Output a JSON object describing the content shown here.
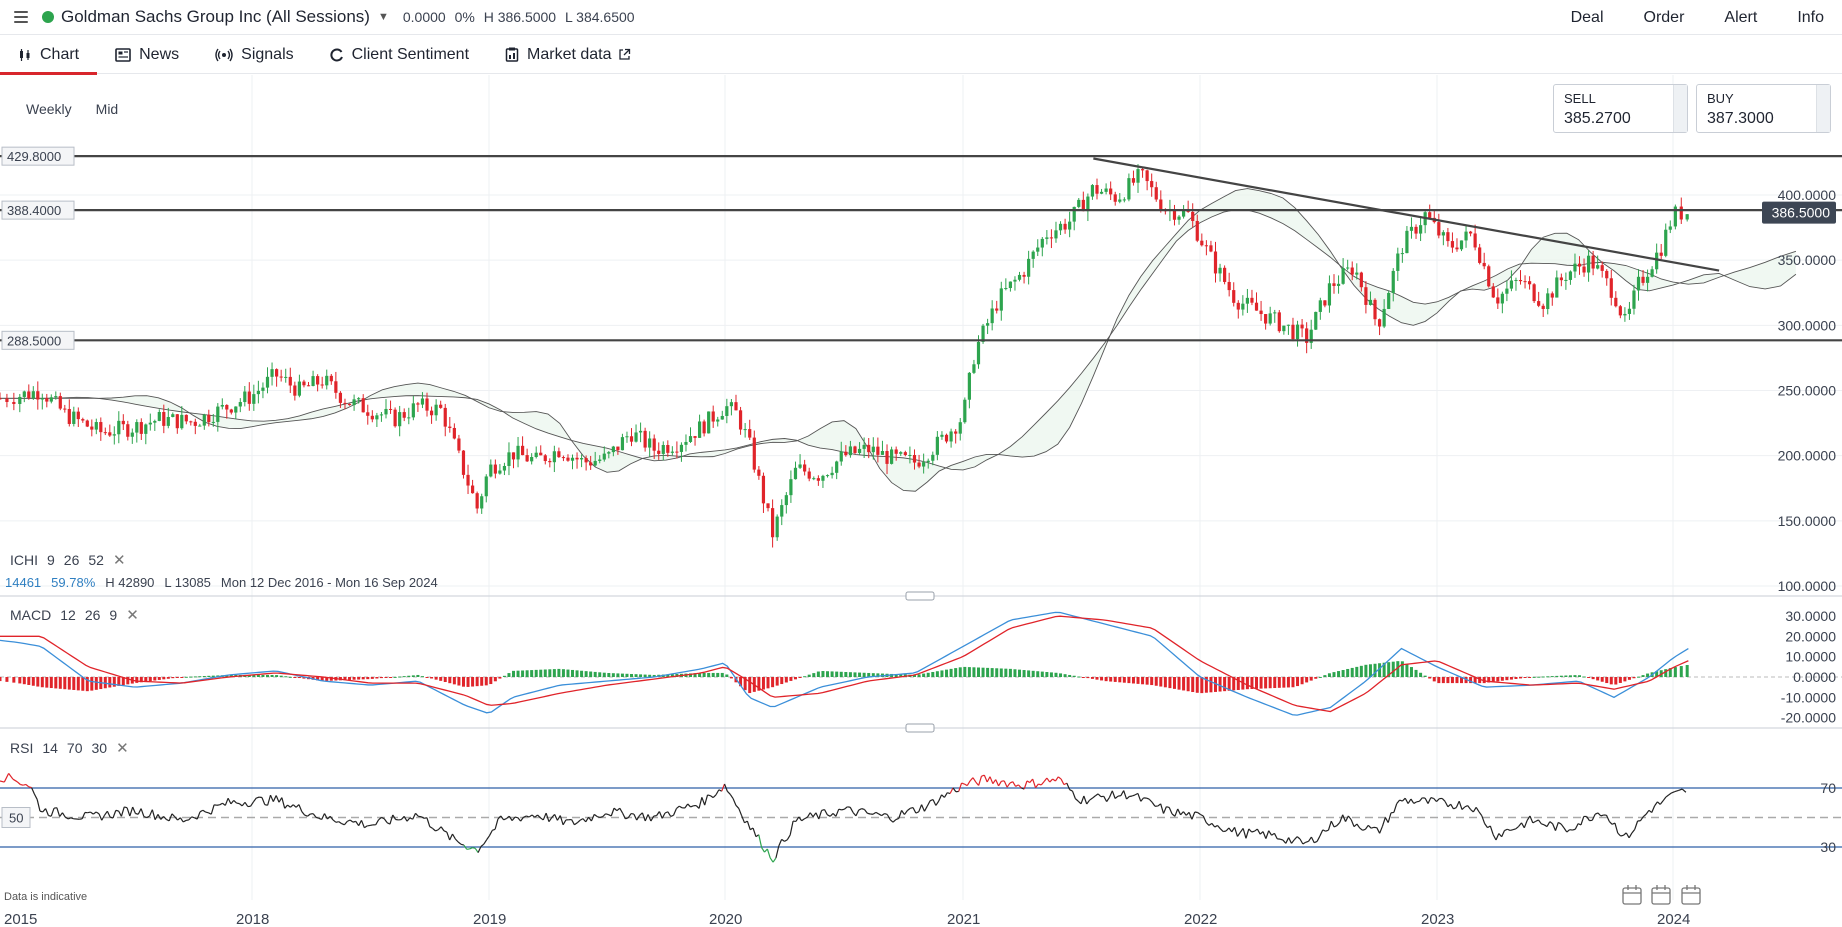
{
  "header": {
    "instrument": "Goldman Sachs Group Inc (All Sessions)",
    "change": "0.0000",
    "change_pct": "0%",
    "high": "H 386.5000",
    "low": "L 384.6500",
    "actions": [
      "Deal",
      "Order",
      "Alert",
      "Info"
    ]
  },
  "tabs": [
    {
      "label": "Chart",
      "icon": "candlestick-icon"
    },
    {
      "label": "News",
      "icon": "newspaper-icon"
    },
    {
      "label": "Signals",
      "icon": "signal-icon"
    },
    {
      "label": "Client Sentiment",
      "icon": "sentiment-icon"
    },
    {
      "label": "Market data",
      "icon": "market-data-icon"
    }
  ],
  "controls": {
    "interval": "Weekly",
    "price_type": "Mid"
  },
  "prices": {
    "sell_label": "SELL",
    "sell": "385.2700",
    "buy_label": "BUY",
    "buy": "387.3000",
    "current": "386.5000"
  },
  "colors": {
    "up": "#2da44e",
    "down": "#e0242a",
    "accent": "#d8262c",
    "current_tag": "#3d4654"
  },
  "chart_data": [
    {
      "type": "candlestick",
      "title": "",
      "y_ticks": [
        "400.0000",
        "350.0000",
        "300.0000",
        "250.0000",
        "200.0000",
        "150.0000",
        "100.0000"
      ],
      "x_ticks": [
        "2015",
        "2018",
        "2019",
        "2020",
        "2021",
        "2022",
        "2023",
        "2024"
      ],
      "ylim": [
        100,
        450
      ],
      "horizontal_levels": [
        "429.8000",
        "388.4000",
        "288.5000"
      ],
      "level_values": [
        429.8,
        388.4,
        288.5
      ],
      "trendline": [
        {
          "x": 2021.55,
          "y": 428
        },
        {
          "x": 2024.15,
          "y": 342
        }
      ],
      "close_path": [
        [
          2016.95,
          244
        ],
        [
          2017.1,
          250
        ],
        [
          2017.2,
          232
        ],
        [
          2017.35,
          218
        ],
        [
          2017.5,
          222
        ],
        [
          2017.6,
          228
        ],
        [
          2017.75,
          226
        ],
        [
          2017.9,
          238
        ],
        [
          2018.0,
          246
        ],
        [
          2018.1,
          262
        ],
        [
          2018.2,
          250
        ],
        [
          2018.3,
          258
        ],
        [
          2018.4,
          242
        ],
        [
          2018.5,
          235
        ],
        [
          2018.6,
          228
        ],
        [
          2018.7,
          238
        ],
        [
          2018.8,
          235
        ],
        [
          2018.85,
          210
        ],
        [
          2018.95,
          160
        ],
        [
          2019.0,
          190
        ],
        [
          2019.1,
          202
        ],
        [
          2019.2,
          196
        ],
        [
          2019.3,
          205
        ],
        [
          2019.4,
          195
        ],
        [
          2019.5,
          198
        ],
        [
          2019.6,
          218
        ],
        [
          2019.7,
          205
        ],
        [
          2019.8,
          210
        ],
        [
          2019.9,
          222
        ],
        [
          2020.0,
          238
        ],
        [
          2020.05,
          232
        ],
        [
          2020.1,
          210
        ],
        [
          2020.2,
          140
        ],
        [
          2020.3,
          190
        ],
        [
          2020.4,
          185
        ],
        [
          2020.5,
          200
        ],
        [
          2020.6,
          205
        ],
        [
          2020.7,
          198
        ],
        [
          2020.8,
          195
        ],
        [
          2020.9,
          210
        ],
        [
          2021.0,
          230
        ],
        [
          2021.05,
          280
        ],
        [
          2021.15,
          320
        ],
        [
          2021.25,
          340
        ],
        [
          2021.35,
          370
        ],
        [
          2021.45,
          380
        ],
        [
          2021.55,
          405
        ],
        [
          2021.65,
          398
        ],
        [
          2021.75,
          415
        ],
        [
          2021.85,
          390
        ],
        [
          2021.95,
          385
        ],
        [
          2022.05,
          350
        ],
        [
          2022.15,
          320
        ],
        [
          2022.3,
          305
        ],
        [
          2022.45,
          290
        ],
        [
          2022.55,
          330
        ],
        [
          2022.65,
          345
        ],
        [
          2022.75,
          300
        ],
        [
          2022.85,
          360
        ],
        [
          2022.95,
          385
        ],
        [
          2023.05,
          360
        ],
        [
          2023.15,
          370
        ],
        [
          2023.25,
          320
        ],
        [
          2023.35,
          335
        ],
        [
          2023.45,
          318
        ],
        [
          2023.55,
          340
        ],
        [
          2023.65,
          350
        ],
        [
          2023.75,
          325
        ],
        [
          2023.8,
          300
        ],
        [
          2023.85,
          330
        ],
        [
          2023.95,
          360
        ],
        [
          2024.0,
          385
        ],
        [
          2024.05,
          387
        ]
      ]
    },
    {
      "type": "line",
      "title": "",
      "y_ticks": [
        "30.0000",
        "20.0000",
        "10.0000",
        "0.0000",
        "-10.0000",
        "-20.0000"
      ],
      "ylim": [
        -25,
        35
      ],
      "macd": [
        [
          2016.95,
          18
        ],
        [
          2017.1,
          15
        ],
        [
          2017.3,
          -2
        ],
        [
          2017.5,
          -5
        ],
        [
          2017.7,
          -3
        ],
        [
          2017.9,
          1
        ],
        [
          2018.1,
          3
        ],
        [
          2018.3,
          -2
        ],
        [
          2018.5,
          -4
        ],
        [
          2018.7,
          -2
        ],
        [
          2018.9,
          -14
        ],
        [
          2019.0,
          -18
        ],
        [
          2019.1,
          -10
        ],
        [
          2019.3,
          -4
        ],
        [
          2019.5,
          -2
        ],
        [
          2019.7,
          0
        ],
        [
          2019.9,
          4
        ],
        [
          2020.0,
          7
        ],
        [
          2020.1,
          -10
        ],
        [
          2020.2,
          -15
        ],
        [
          2020.4,
          -5
        ],
        [
          2020.6,
          0
        ],
        [
          2020.8,
          2
        ],
        [
          2021.0,
          15
        ],
        [
          2021.2,
          28
        ],
        [
          2021.4,
          32
        ],
        [
          2021.6,
          26
        ],
        [
          2021.8,
          20
        ],
        [
          2022.0,
          0
        ],
        [
          2022.2,
          -10
        ],
        [
          2022.4,
          -19
        ],
        [
          2022.55,
          -15
        ],
        [
          2022.7,
          -2
        ],
        [
          2022.85,
          14
        ],
        [
          2023.0,
          5
        ],
        [
          2023.2,
          -5
        ],
        [
          2023.4,
          -4
        ],
        [
          2023.6,
          -2
        ],
        [
          2023.75,
          -10
        ],
        [
          2023.9,
          0
        ],
        [
          2024.05,
          14
        ]
      ],
      "signal": [
        [
          2016.95,
          20
        ],
        [
          2017.1,
          20
        ],
        [
          2017.3,
          5
        ],
        [
          2017.5,
          -2
        ],
        [
          2017.7,
          -3
        ],
        [
          2017.9,
          0
        ],
        [
          2018.1,
          2
        ],
        [
          2018.3,
          0
        ],
        [
          2018.5,
          -3
        ],
        [
          2018.7,
          -3
        ],
        [
          2018.9,
          -9
        ],
        [
          2019.0,
          -14
        ],
        [
          2019.1,
          -13
        ],
        [
          2019.3,
          -8
        ],
        [
          2019.5,
          -4
        ],
        [
          2019.7,
          -1
        ],
        [
          2019.9,
          2
        ],
        [
          2020.0,
          5
        ],
        [
          2020.1,
          -2
        ],
        [
          2020.2,
          -10
        ],
        [
          2020.4,
          -8
        ],
        [
          2020.6,
          -2
        ],
        [
          2020.8,
          1
        ],
        [
          2021.0,
          10
        ],
        [
          2021.2,
          24
        ],
        [
          2021.4,
          30
        ],
        [
          2021.6,
          28
        ],
        [
          2021.8,
          24
        ],
        [
          2022.0,
          8
        ],
        [
          2022.2,
          -4
        ],
        [
          2022.4,
          -14
        ],
        [
          2022.55,
          -17
        ],
        [
          2022.7,
          -8
        ],
        [
          2022.85,
          6
        ],
        [
          2023.0,
          8
        ],
        [
          2023.2,
          -2
        ],
        [
          2023.4,
          -4
        ],
        [
          2023.6,
          -3
        ],
        [
          2023.75,
          -6
        ],
        [
          2023.9,
          -2
        ],
        [
          2024.05,
          8
        ]
      ]
    },
    {
      "type": "line",
      "title": "",
      "y_ticks": [
        "70",
        "30"
      ],
      "ylim": [
        10,
        90
      ],
      "rsi": [
        [
          2016.95,
          78
        ],
        [
          2017.05,
          72
        ],
        [
          2017.1,
          55
        ],
        [
          2017.3,
          50
        ],
        [
          2017.5,
          55
        ],
        [
          2017.7,
          48
        ],
        [
          2017.9,
          60
        ],
        [
          2018.1,
          62
        ],
        [
          2018.3,
          50
        ],
        [
          2018.5,
          45
        ],
        [
          2018.7,
          52
        ],
        [
          2018.85,
          35
        ],
        [
          2018.95,
          28
        ],
        [
          2019.05,
          48
        ],
        [
          2019.2,
          52
        ],
        [
          2019.35,
          46
        ],
        [
          2019.5,
          54
        ],
        [
          2019.7,
          50
        ],
        [
          2019.9,
          60
        ],
        [
          2020.0,
          72
        ],
        [
          2020.1,
          45
        ],
        [
          2020.2,
          22
        ],
        [
          2020.3,
          48
        ],
        [
          2020.5,
          55
        ],
        [
          2020.7,
          50
        ],
        [
          2020.85,
          58
        ],
        [
          2021.0,
          72
        ],
        [
          2021.1,
          76
        ],
        [
          2021.25,
          72
        ],
        [
          2021.4,
          76
        ],
        [
          2021.5,
          62
        ],
        [
          2021.7,
          66
        ],
        [
          2021.85,
          55
        ],
        [
          2022.0,
          50
        ],
        [
          2022.15,
          40
        ],
        [
          2022.3,
          38
        ],
        [
          2022.45,
          32
        ],
        [
          2022.6,
          50
        ],
        [
          2022.75,
          40
        ],
        [
          2022.85,
          62
        ],
        [
          2023.0,
          60
        ],
        [
          2023.15,
          58
        ],
        [
          2023.25,
          38
        ],
        [
          2023.4,
          48
        ],
        [
          2023.55,
          42
        ],
        [
          2023.7,
          55
        ],
        [
          2023.8,
          36
        ],
        [
          2023.9,
          55
        ],
        [
          2024.0,
          65
        ],
        [
          2024.05,
          69
        ]
      ]
    }
  ],
  "ichimoku": {
    "label": "ICHI",
    "params": [
      "9",
      "26",
      "52"
    ],
    "info_blue": [
      "14461",
      "59.78%"
    ],
    "info_dark": [
      "H 42890",
      "L 13085",
      "Mon 12 Dec 2016 - Mon 16 Sep 2024"
    ]
  },
  "macd": {
    "label": "MACD",
    "params": [
      "12",
      "26",
      "9"
    ]
  },
  "rsi": {
    "label": "RSI",
    "params": [
      "14",
      "70",
      "30"
    ],
    "mid": "50"
  },
  "footer": {
    "note": "Data is indicative"
  }
}
